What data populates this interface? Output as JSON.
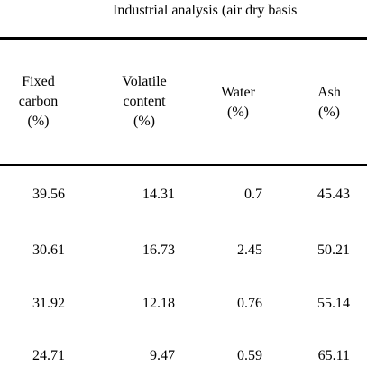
{
  "caption": "Industrial analysis (air dry basis",
  "headers": [
    {
      "lines": [
        "Fixed",
        "carbon",
        "(%)"
      ]
    },
    {
      "lines": [
        "Volatile",
        "content",
        "(%)"
      ]
    },
    {
      "lines": [
        "Water",
        "(%)"
      ]
    },
    {
      "lines": [
        "Ash",
        "(%)"
      ]
    }
  ],
  "rows": [
    [
      "39.56",
      "14.31",
      "0.7",
      "45.43"
    ],
    [
      "30.61",
      "16.73",
      "2.45",
      "50.21"
    ],
    [
      "31.92",
      "12.18",
      "0.76",
      "55.14"
    ],
    [
      "24.71",
      "9.47",
      "0.59",
      "65.11"
    ]
  ]
}
